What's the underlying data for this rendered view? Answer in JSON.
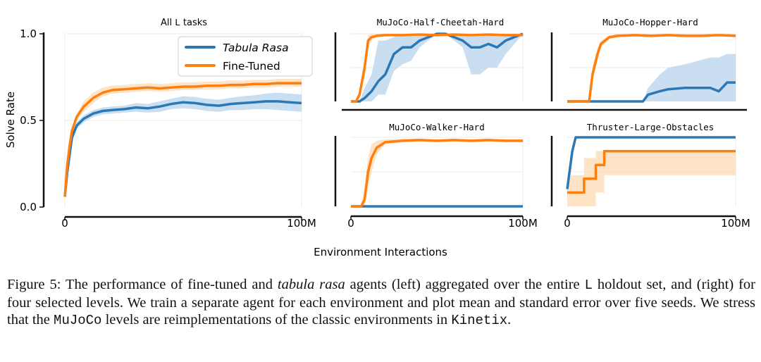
{
  "colors": {
    "blue": "#2b78b5",
    "orange": "#ff7f0e",
    "blue_fill": "#b7d3ec",
    "orange_fill": "#ffd9b3",
    "grid": "#ebebeb"
  },
  "figure": {
    "ylabel": "Solve Rate",
    "xlabel": "Environment Interactions"
  },
  "chart_data": [
    {
      "id": "all",
      "type": "line",
      "title_prefix": "All",
      "title_code": "L",
      "title_suffix": "tasks",
      "xlim": [
        0,
        100
      ],
      "ylim": [
        0,
        1
      ],
      "x_ticks": [
        "0",
        "100M"
      ],
      "y_ticks": [
        "0.0",
        "0.5",
        "1.0"
      ],
      "legend": {
        "placement": "top-right",
        "entries": [
          "Tabula Rasa",
          "Fine-Tuned"
        ]
      },
      "series": [
        {
          "name": "Tabula Rasa",
          "color": "blue",
          "x": [
            0,
            1,
            2,
            3,
            5,
            8,
            12,
            16,
            20,
            25,
            30,
            35,
            40,
            45,
            50,
            55,
            60,
            65,
            70,
            75,
            80,
            85,
            90,
            95,
            100
          ],
          "y": [
            0.06,
            0.2,
            0.3,
            0.4,
            0.47,
            0.51,
            0.54,
            0.555,
            0.56,
            0.565,
            0.575,
            0.57,
            0.58,
            0.595,
            0.605,
            0.6,
            0.59,
            0.585,
            0.595,
            0.6,
            0.605,
            0.61,
            0.61,
            0.605,
            0.6
          ],
          "lo": [
            0.05,
            0.18,
            0.28,
            0.38,
            0.45,
            0.49,
            0.52,
            0.535,
            0.54,
            0.545,
            0.55,
            0.545,
            0.55,
            0.565,
            0.57,
            0.565,
            0.555,
            0.55,
            0.56,
            0.56,
            0.565,
            0.565,
            0.56,
            0.555,
            0.55
          ],
          "hi": [
            0.07,
            0.22,
            0.32,
            0.42,
            0.49,
            0.53,
            0.56,
            0.575,
            0.58,
            0.585,
            0.6,
            0.595,
            0.61,
            0.625,
            0.64,
            0.635,
            0.625,
            0.62,
            0.63,
            0.64,
            0.645,
            0.655,
            0.66,
            0.655,
            0.65
          ]
        },
        {
          "name": "Fine-Tuned",
          "color": "orange",
          "x": [
            0,
            1,
            2,
            3,
            5,
            8,
            12,
            16,
            20,
            25,
            30,
            35,
            40,
            45,
            50,
            55,
            60,
            65,
            70,
            75,
            80,
            85,
            90,
            95,
            100
          ],
          "y": [
            0.06,
            0.24,
            0.35,
            0.44,
            0.52,
            0.58,
            0.63,
            0.66,
            0.675,
            0.68,
            0.685,
            0.69,
            0.685,
            0.69,
            0.695,
            0.695,
            0.7,
            0.7,
            0.705,
            0.705,
            0.71,
            0.71,
            0.715,
            0.715,
            0.715
          ],
          "lo": [
            0.05,
            0.22,
            0.33,
            0.42,
            0.5,
            0.55,
            0.6,
            0.64,
            0.655,
            0.66,
            0.665,
            0.67,
            0.665,
            0.67,
            0.675,
            0.675,
            0.68,
            0.68,
            0.685,
            0.685,
            0.69,
            0.69,
            0.695,
            0.695,
            0.695
          ],
          "hi": [
            0.07,
            0.26,
            0.37,
            0.46,
            0.54,
            0.61,
            0.66,
            0.69,
            0.7,
            0.705,
            0.71,
            0.715,
            0.71,
            0.715,
            0.72,
            0.72,
            0.725,
            0.725,
            0.73,
            0.73,
            0.735,
            0.735,
            0.74,
            0.74,
            0.74
          ]
        }
      ]
    },
    {
      "id": "cheetah",
      "type": "line",
      "title": "MuJoCo-Half-Cheetah-Hard",
      "xlim": [
        0,
        100
      ],
      "ylim": [
        0,
        1
      ],
      "x_ticks": [],
      "series": [
        {
          "name": "Tabula Rasa",
          "color": "blue",
          "x": [
            0,
            5,
            8,
            12,
            16,
            20,
            25,
            30,
            35,
            40,
            45,
            50,
            55,
            60,
            65,
            70,
            75,
            80,
            85,
            90,
            95,
            100
          ],
          "y": [
            0,
            0,
            0.05,
            0.15,
            0.3,
            0.4,
            0.7,
            0.8,
            0.8,
            0.9,
            0.95,
            1.0,
            1.0,
            0.95,
            0.9,
            0.8,
            0.8,
            0.85,
            0.8,
            0.9,
            0.95,
            1.0
          ],
          "lo": [
            0,
            0,
            0,
            0,
            0.1,
            0.1,
            0.45,
            0.55,
            0.6,
            0.8,
            0.9,
            1.0,
            1.0,
            0.9,
            0.8,
            0.4,
            0.4,
            0.5,
            0.5,
            0.7,
            0.85,
            1.0
          ],
          "hi": [
            0,
            0,
            0.2,
            0.4,
            0.9,
            0.9,
            0.95,
            1.0,
            1.0,
            1.0,
            1.0,
            1.0,
            1.0,
            1.0,
            1.0,
            1.0,
            1.0,
            1.0,
            1.0,
            1.0,
            1.0,
            1.0
          ]
        },
        {
          "name": "Fine-Tuned",
          "color": "orange",
          "x": [
            0,
            3,
            5,
            8,
            10,
            12,
            15,
            20,
            30,
            40,
            50,
            60,
            70,
            80,
            90,
            100
          ],
          "y": [
            0,
            0,
            0.1,
            0.5,
            0.9,
            0.95,
            0.97,
            0.98,
            0.98,
            0.99,
            0.98,
            0.99,
            0.98,
            0.99,
            0.98,
            0.98
          ],
          "lo": [
            0,
            0,
            0.05,
            0.35,
            0.8,
            0.9,
            0.95,
            0.96,
            0.97,
            0.98,
            0.97,
            0.98,
            0.97,
            0.98,
            0.97,
            0.97
          ],
          "hi": [
            0,
            0,
            0.15,
            0.65,
            0.98,
            1.0,
            1.0,
            1.0,
            1.0,
            1.0,
            1.0,
            1.0,
            1.0,
            1.0,
            1.0,
            1.0
          ]
        }
      ]
    },
    {
      "id": "hopper",
      "type": "line",
      "title": "MuJoCo-Hopper-Hard",
      "xlim": [
        0,
        100
      ],
      "ylim": [
        0,
        1
      ],
      "x_ticks": [],
      "series": [
        {
          "name": "Tabula Rasa",
          "color": "blue",
          "x": [
            0,
            45,
            48,
            55,
            60,
            70,
            85,
            90,
            95,
            100
          ],
          "y": [
            0,
            0,
            0.1,
            0.15,
            0.18,
            0.2,
            0.2,
            0.15,
            0.28,
            0.28
          ],
          "lo": [
            0,
            0,
            0,
            0,
            0,
            0,
            0,
            0,
            0,
            0
          ],
          "hi": [
            0,
            0,
            0.2,
            0.4,
            0.5,
            0.55,
            0.65,
            0.65,
            0.7,
            0.7
          ]
        },
        {
          "name": "Fine-Tuned",
          "color": "orange",
          "x": [
            0,
            13,
            15,
            18,
            20,
            25,
            30,
            40,
            50,
            60,
            70,
            80,
            90,
            100
          ],
          "y": [
            0,
            0,
            0.4,
            0.7,
            0.85,
            0.95,
            0.97,
            0.98,
            0.97,
            0.98,
            0.97,
            0.97,
            0.98,
            0.97
          ],
          "lo": [
            0,
            0,
            0.3,
            0.6,
            0.8,
            0.92,
            0.95,
            0.96,
            0.95,
            0.96,
            0.95,
            0.95,
            0.96,
            0.95
          ],
          "hi": [
            0,
            0,
            0.5,
            0.8,
            0.9,
            0.98,
            1.0,
            1.0,
            1.0,
            1.0,
            1.0,
            1.0,
            1.0,
            1.0
          ]
        }
      ]
    },
    {
      "id": "walker",
      "type": "line",
      "title": "MuJoCo-Walker-Hard",
      "xlim": [
        0,
        100
      ],
      "ylim": [
        0,
        1
      ],
      "x_ticks": [
        "0",
        "100M"
      ],
      "series": [
        {
          "name": "Tabula Rasa",
          "color": "blue",
          "x": [
            0,
            100
          ],
          "y": [
            0,
            0
          ],
          "lo": [
            0,
            0
          ],
          "hi": [
            0,
            0
          ]
        },
        {
          "name": "Fine-Tuned",
          "color": "orange",
          "x": [
            0,
            6,
            8,
            10,
            12,
            15,
            20,
            30,
            40,
            50,
            60,
            70,
            80,
            90,
            100
          ],
          "y": [
            0,
            0,
            0.1,
            0.5,
            0.7,
            0.85,
            0.93,
            0.95,
            0.96,
            0.95,
            0.96,
            0.95,
            0.96,
            0.95,
            0.95
          ],
          "lo": [
            0,
            0,
            0,
            0.3,
            0.5,
            0.75,
            0.9,
            0.93,
            0.94,
            0.93,
            0.94,
            0.93,
            0.94,
            0.93,
            0.93
          ],
          "hi": [
            0,
            0,
            0.3,
            0.7,
            0.9,
            0.95,
            0.97,
            0.98,
            0.98,
            0.97,
            0.98,
            0.97,
            0.98,
            0.97,
            0.97
          ]
        }
      ]
    },
    {
      "id": "thruster",
      "type": "line",
      "title": "Thruster-Large-Obstacles",
      "xlim": [
        0,
        100
      ],
      "ylim": [
        0,
        1
      ],
      "x_ticks": [
        "0",
        "100M"
      ],
      "series": [
        {
          "name": "Tabula Rasa",
          "color": "blue",
          "x": [
            0,
            3,
            5,
            100
          ],
          "y": [
            0.25,
            0.8,
            1.0,
            1.0
          ],
          "lo": [
            0.2,
            0.75,
            1.0,
            1.0
          ],
          "hi": [
            0.3,
            0.85,
            1.0,
            1.0
          ]
        },
        {
          "name": "Fine-Tuned",
          "color": "orange",
          "x": [
            0,
            2,
            10,
            10,
            17,
            17,
            22,
            22,
            100
          ],
          "y": [
            0.2,
            0.2,
            0.2,
            0.4,
            0.4,
            0.6,
            0.6,
            0.8,
            0.8
          ],
          "lo": [
            0.0,
            0.0,
            0.0,
            0.0,
            0.0,
            0.2,
            0.2,
            0.45,
            0.45
          ],
          "hi": [
            0.45,
            0.45,
            0.45,
            0.7,
            0.7,
            0.8,
            0.8,
            0.8,
            0.8
          ]
        }
      ]
    }
  ],
  "caption": {
    "p1": "Figure 5: The performance of fine-tuned and ",
    "p2": "tabula rasa",
    "p3": " agents (left) aggregated over the entire ",
    "p4": "L",
    "p5": " holdout set, and (right) for four selected levels. We train a separate agent for each environment and plot mean and standard error over five seeds. We stress that the ",
    "p6": "MuJoCo",
    "p7": " levels are reimplementations of the classic environments in ",
    "p8": "Kinetix",
    "p9": "."
  }
}
